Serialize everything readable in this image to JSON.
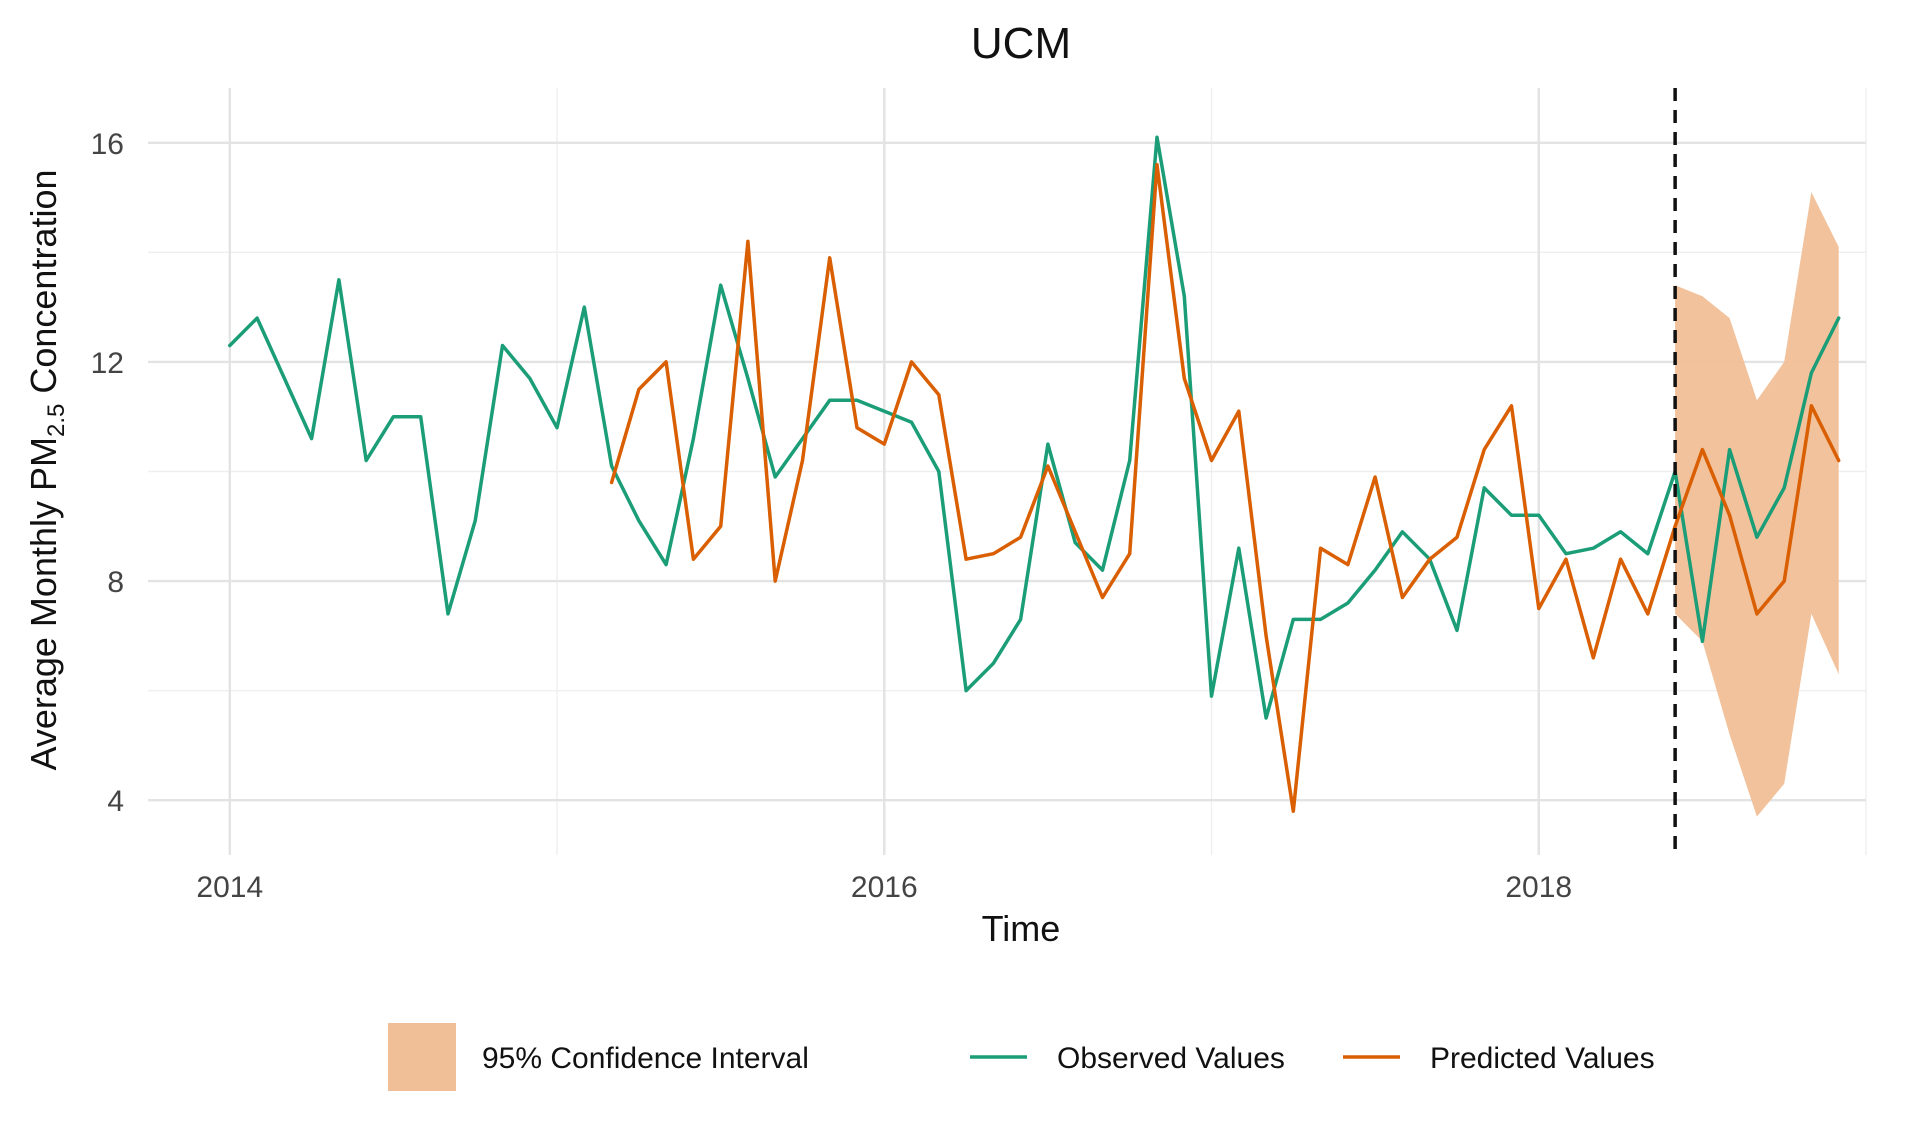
{
  "chart_data": {
    "type": "line",
    "title": "UCM",
    "xlabel": "Time",
    "ylabel_parts": [
      "Average Monthly PM",
      "2.5",
      " Concentration"
    ],
    "xlim": [
      2013.75,
      2019.0
    ],
    "ylim": [
      3.0,
      17.0
    ],
    "x_ticks": [
      2014,
      2016,
      2018
    ],
    "x_tick_labels": [
      "2014",
      "2016",
      "2018"
    ],
    "y_ticks": [
      4,
      8,
      12,
      16
    ],
    "y_tick_labels": [
      "4",
      "8",
      "12",
      "16"
    ],
    "grid": true,
    "forecast_start": 2018.4167,
    "legend_position": "bottom",
    "colors": {
      "observed": "#1b9e77",
      "predicted": "#d95f02",
      "ci_fill": "#f0bf98",
      "vline": "#111111"
    },
    "legend": [
      {
        "key": "ci",
        "label": "95% Confidence Interval"
      },
      {
        "key": "observed",
        "label": "Observed Values"
      },
      {
        "key": "predicted",
        "label": "Predicted Values"
      }
    ],
    "observed": {
      "x": [
        2014.0,
        2014.0833,
        2014.1667,
        2014.25,
        2014.3333,
        2014.4167,
        2014.5,
        2014.5833,
        2014.6667,
        2014.75,
        2014.8333,
        2014.9167,
        2015.0,
        2015.0833,
        2015.1667,
        2015.25,
        2015.3333,
        2015.4167,
        2015.5,
        2015.5833,
        2015.6667,
        2015.75,
        2015.8333,
        2015.9167,
        2016.0,
        2016.0833,
        2016.1667,
        2016.25,
        2016.3333,
        2016.4167,
        2016.5,
        2016.5833,
        2016.6667,
        2016.75,
        2016.8333,
        2016.9167,
        2017.0,
        2017.0833,
        2017.1667,
        2017.25,
        2017.3333,
        2017.4167,
        2017.5,
        2017.5833,
        2017.6667,
        2017.75,
        2017.8333,
        2017.9167,
        2018.0,
        2018.0833,
        2018.1667,
        2018.25,
        2018.3333,
        2018.4167,
        2018.5,
        2018.5833,
        2018.6667,
        2018.75,
        2018.8333,
        2018.9167
      ],
      "y": [
        12.3,
        12.8,
        11.7,
        10.6,
        13.5,
        10.2,
        11.0,
        11.0,
        7.4,
        9.1,
        12.3,
        11.7,
        10.8,
        13.0,
        10.1,
        9.1,
        8.3,
        10.6,
        13.4,
        11.7,
        9.9,
        10.6,
        11.3,
        11.3,
        11.1,
        10.9,
        10.0,
        6.0,
        6.5,
        7.3,
        10.5,
        8.7,
        8.2,
        10.2,
        16.1,
        13.2,
        5.9,
        8.6,
        5.5,
        7.3,
        7.3,
        7.6,
        8.2,
        8.9,
        8.4,
        7.1,
        9.7,
        9.2,
        9.2,
        8.5,
        8.6,
        8.9,
        8.5,
        10.0,
        6.9,
        10.4,
        8.8,
        9.7,
        11.8,
        12.8
      ]
    },
    "predicted": {
      "x": [
        2015.1667,
        2015.25,
        2015.3333,
        2015.4167,
        2015.5,
        2015.5833,
        2015.6667,
        2015.75,
        2015.8333,
        2015.9167,
        2016.0,
        2016.0833,
        2016.1667,
        2016.25,
        2016.3333,
        2016.4167,
        2016.5,
        2016.5833,
        2016.6667,
        2016.75,
        2016.8333,
        2016.9167,
        2017.0,
        2017.0833,
        2017.1667,
        2017.25,
        2017.3333,
        2017.4167,
        2017.5,
        2017.5833,
        2017.6667,
        2017.75,
        2017.8333,
        2017.9167,
        2018.0,
        2018.0833,
        2018.1667,
        2018.25,
        2018.3333,
        2018.4167,
        2018.5,
        2018.5833,
        2018.6667,
        2018.75,
        2018.8333,
        2018.9167
      ],
      "y": [
        9.8,
        11.5,
        12.0,
        8.4,
        9.0,
        14.2,
        8.0,
        10.2,
        13.9,
        10.8,
        10.5,
        12.0,
        11.4,
        8.4,
        8.5,
        8.8,
        10.1,
        8.9,
        7.7,
        8.5,
        15.6,
        11.7,
        10.2,
        11.1,
        7.0,
        3.8,
        8.6,
        8.3,
        9.9,
        7.7,
        8.4,
        8.8,
        10.4,
        11.2,
        7.5,
        8.4,
        6.6,
        8.4,
        7.4,
        9.0,
        10.4,
        9.2,
        7.4,
        8.0,
        11.2,
        10.2
      ]
    },
    "ci": {
      "x": [
        2018.4167,
        2018.5,
        2018.5833,
        2018.6667,
        2018.75,
        2018.8333,
        2018.9167
      ],
      "lower": [
        7.4,
        6.9,
        5.2,
        3.7,
        4.3,
        7.4,
        6.3
      ],
      "upper": [
        13.4,
        13.2,
        12.8,
        11.3,
        12.0,
        15.1,
        14.1
      ]
    }
  }
}
